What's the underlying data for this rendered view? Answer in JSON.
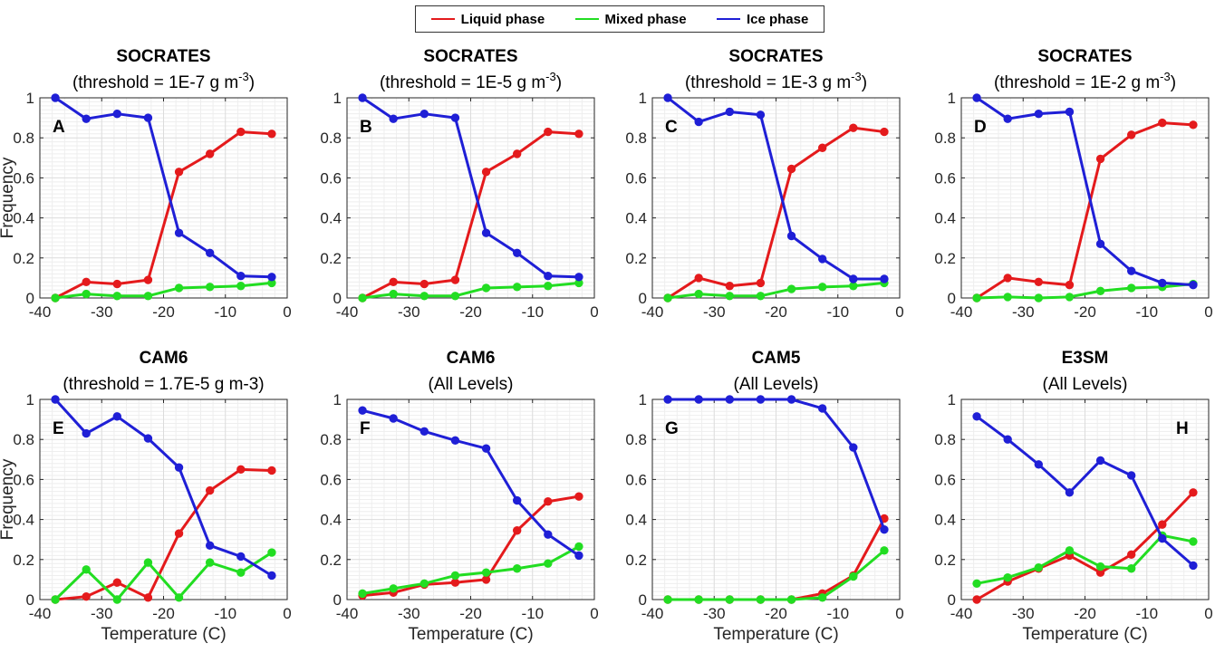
{
  "legend": [
    {
      "name": "Liquid phase",
      "color": "#e41a1c"
    },
    {
      "name": "Mixed phase",
      "color": "#22dd22"
    },
    {
      "name": "Ice phase",
      "color": "#1f1fd6"
    }
  ],
  "chart_data": [
    {
      "type": "line",
      "panel": "A",
      "title": "SOCRATES",
      "subtitle": "(threshold = 1E-7 g m",
      "subtitle_sup": "-3",
      "subtitle_end": ")",
      "xlabel": "",
      "ylabel": "Frequency",
      "xlim": [
        -40,
        0
      ],
      "ylim": [
        0,
        1
      ],
      "grid": true,
      "x": [
        -37.5,
        -32.5,
        -27.5,
        -22.5,
        -17.5,
        -12.5,
        -7.5,
        -2.5
      ],
      "series": [
        {
          "name": "Liquid phase",
          "values": [
            0.0,
            0.08,
            0.07,
            0.09,
            0.63,
            0.72,
            0.83,
            0.82
          ]
        },
        {
          "name": "Mixed phase",
          "values": [
            0.0,
            0.02,
            0.01,
            0.01,
            0.05,
            0.055,
            0.06,
            0.075
          ]
        },
        {
          "name": "Ice phase",
          "values": [
            1.0,
            0.895,
            0.92,
            0.9,
            0.325,
            0.225,
            0.11,
            0.105
          ]
        }
      ]
    },
    {
      "type": "line",
      "panel": "B",
      "title": "SOCRATES",
      "subtitle": "(threshold = 1E-5 g m",
      "subtitle_sup": "-3",
      "subtitle_end": ")",
      "xlabel": "",
      "ylabel": "",
      "xlim": [
        -40,
        0
      ],
      "ylim": [
        0,
        1
      ],
      "grid": true,
      "x": [
        -37.5,
        -32.5,
        -27.5,
        -22.5,
        -17.5,
        -12.5,
        -7.5,
        -2.5
      ],
      "series": [
        {
          "name": "Liquid phase",
          "values": [
            0.0,
            0.08,
            0.07,
            0.09,
            0.63,
            0.72,
            0.83,
            0.82
          ]
        },
        {
          "name": "Mixed phase",
          "values": [
            0.0,
            0.02,
            0.01,
            0.01,
            0.05,
            0.055,
            0.06,
            0.075
          ]
        },
        {
          "name": "Ice phase",
          "values": [
            1.0,
            0.895,
            0.92,
            0.9,
            0.325,
            0.225,
            0.11,
            0.105
          ]
        }
      ]
    },
    {
      "type": "line",
      "panel": "C",
      "title": "SOCRATES",
      "subtitle": "(threshold = 1E-3 g m",
      "subtitle_sup": "-3",
      "subtitle_end": ")",
      "xlabel": "",
      "ylabel": "",
      "xlim": [
        -40,
        0
      ],
      "ylim": [
        0,
        1
      ],
      "grid": true,
      "x": [
        -37.5,
        -32.5,
        -27.5,
        -22.5,
        -17.5,
        -12.5,
        -7.5,
        -2.5
      ],
      "series": [
        {
          "name": "Liquid phase",
          "values": [
            0.0,
            0.1,
            0.06,
            0.075,
            0.645,
            0.75,
            0.85,
            0.83
          ]
        },
        {
          "name": "Mixed phase",
          "values": [
            0.0,
            0.02,
            0.01,
            0.01,
            0.045,
            0.055,
            0.06,
            0.075
          ]
        },
        {
          "name": "Ice phase",
          "values": [
            1.0,
            0.88,
            0.93,
            0.915,
            0.31,
            0.195,
            0.095,
            0.095
          ]
        }
      ]
    },
    {
      "type": "line",
      "panel": "D",
      "title": "SOCRATES",
      "subtitle": "(threshold = 1E-2 g m",
      "subtitle_sup": "-3",
      "subtitle_end": ")",
      "xlabel": "",
      "ylabel": "",
      "xlim": [
        -40,
        0
      ],
      "ylim": [
        0,
        1
      ],
      "grid": true,
      "x": [
        -37.5,
        -32.5,
        -27.5,
        -22.5,
        -17.5,
        -12.5,
        -7.5,
        -2.5
      ],
      "series": [
        {
          "name": "Liquid phase",
          "values": [
            0.0,
            0.1,
            0.08,
            0.065,
            0.695,
            0.815,
            0.875,
            0.865
          ]
        },
        {
          "name": "Mixed phase",
          "values": [
            0.0,
            0.005,
            0.0,
            0.005,
            0.035,
            0.05,
            0.055,
            0.07
          ]
        },
        {
          "name": "Ice phase",
          "values": [
            1.0,
            0.895,
            0.92,
            0.93,
            0.27,
            0.135,
            0.075,
            0.065
          ]
        }
      ]
    },
    {
      "type": "line",
      "panel": "E",
      "title": "CAM6",
      "subtitle": "(threshold = 1.7E-5 g m-3)",
      "subtitle_sup": "",
      "subtitle_end": "",
      "xlabel": "Temperature (C)",
      "ylabel": "Frequency",
      "xlim": [
        -40,
        0
      ],
      "ylim": [
        0,
        1
      ],
      "grid": true,
      "x": [
        -37.5,
        -32.5,
        -27.5,
        -22.5,
        -17.5,
        -12.5,
        -7.5,
        -2.5
      ],
      "series": [
        {
          "name": "Liquid phase",
          "values": [
            0.0,
            0.015,
            0.085,
            0.01,
            0.33,
            0.545,
            0.65,
            0.645
          ]
        },
        {
          "name": "Mixed phase",
          "values": [
            0.0,
            0.15,
            0.0,
            0.185,
            0.01,
            0.185,
            0.135,
            0.235
          ]
        },
        {
          "name": "Ice phase",
          "values": [
            1.0,
            0.83,
            0.915,
            0.805,
            0.66,
            0.27,
            0.215,
            0.12
          ]
        }
      ]
    },
    {
      "type": "line",
      "panel": "F",
      "title": "CAM6",
      "subtitle": "(All Levels)",
      "subtitle_sup": "",
      "subtitle_end": "",
      "xlabel": "Temperature (C)",
      "ylabel": "",
      "xlim": [
        -40,
        0
      ],
      "ylim": [
        0,
        1
      ],
      "grid": true,
      "x": [
        -37.5,
        -32.5,
        -27.5,
        -22.5,
        -17.5,
        -12.5,
        -7.5,
        -2.5
      ],
      "series": [
        {
          "name": "Liquid phase",
          "values": [
            0.02,
            0.035,
            0.075,
            0.085,
            0.1,
            0.345,
            0.49,
            0.515
          ]
        },
        {
          "name": "Mixed phase",
          "values": [
            0.03,
            0.055,
            0.08,
            0.12,
            0.135,
            0.155,
            0.18,
            0.265
          ]
        },
        {
          "name": "Ice phase",
          "values": [
            0.945,
            0.905,
            0.84,
            0.795,
            0.755,
            0.495,
            0.325,
            0.22
          ]
        }
      ]
    },
    {
      "type": "line",
      "panel": "G",
      "title": "CAM5",
      "subtitle": "(All Levels)",
      "subtitle_sup": "",
      "subtitle_end": "",
      "xlabel": "Temperature (C)",
      "ylabel": "",
      "xlim": [
        -40,
        0
      ],
      "ylim": [
        0,
        1
      ],
      "grid": true,
      "x": [
        -37.5,
        -32.5,
        -27.5,
        -22.5,
        -17.5,
        -12.5,
        -7.5,
        -2.5
      ],
      "series": [
        {
          "name": "Liquid phase",
          "values": [
            0.0,
            0.0,
            0.0,
            0.0,
            0.0,
            0.03,
            0.12,
            0.405
          ]
        },
        {
          "name": "Mixed phase",
          "values": [
            0.0,
            0.0,
            0.0,
            0.0,
            0.0,
            0.01,
            0.115,
            0.245
          ]
        },
        {
          "name": "Ice phase",
          "values": [
            1.0,
            1.0,
            1.0,
            1.0,
            1.0,
            0.955,
            0.76,
            0.35
          ]
        }
      ]
    },
    {
      "type": "line",
      "panel": "H",
      "title": "E3SM",
      "subtitle": "(All Levels)",
      "subtitle_sup": "",
      "subtitle_end": "",
      "xlabel": "Temperature (C)",
      "ylabel": "",
      "xlim": [
        -40,
        0
      ],
      "ylim": [
        0,
        1
      ],
      "grid": true,
      "x": [
        -37.5,
        -32.5,
        -27.5,
        -22.5,
        -17.5,
        -12.5,
        -7.5,
        -2.5
      ],
      "series": [
        {
          "name": "Liquid phase",
          "values": [
            0.0,
            0.09,
            0.155,
            0.22,
            0.135,
            0.225,
            0.375,
            0.535
          ]
        },
        {
          "name": "Mixed phase",
          "values": [
            0.08,
            0.11,
            0.16,
            0.245,
            0.165,
            0.155,
            0.32,
            0.29
          ]
        },
        {
          "name": "Ice phase",
          "values": [
            0.915,
            0.8,
            0.675,
            0.535,
            0.695,
            0.62,
            0.305,
            0.17
          ]
        }
      ]
    }
  ]
}
